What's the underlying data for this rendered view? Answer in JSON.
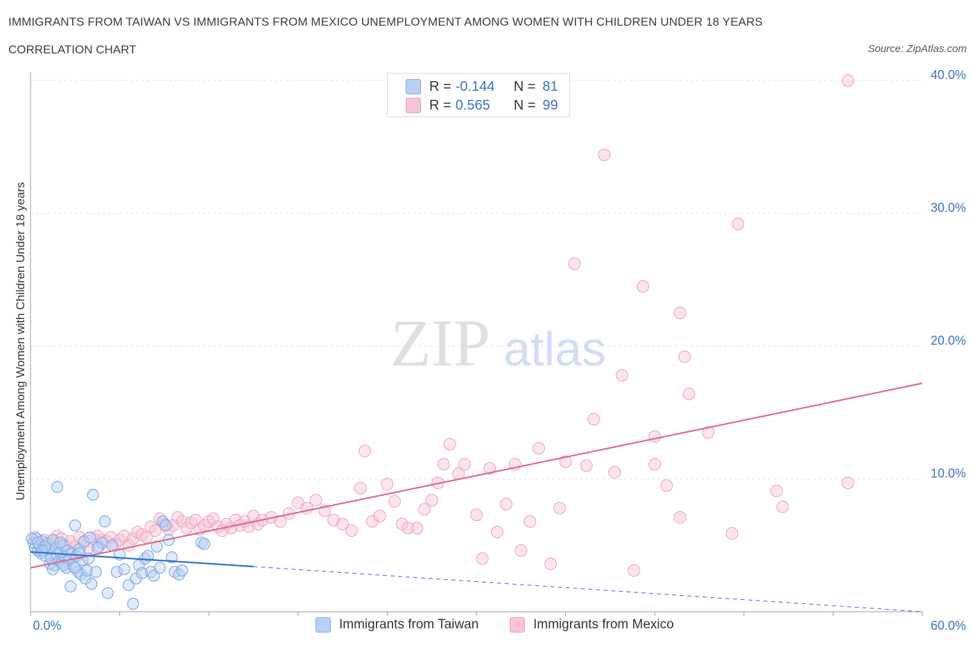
{
  "header": {
    "title": "IMMIGRANTS FROM TAIWAN VS IMMIGRANTS FROM MEXICO UNEMPLOYMENT AMONG WOMEN WITH CHILDREN UNDER 18 YEARS",
    "subtitle": "CORRELATION CHART",
    "source": "Source: ZipAtlas.com"
  },
  "watermark": {
    "zip": "ZIP",
    "atlas": "atlas"
  },
  "legend": {
    "taiwan": {
      "r_label": "R =",
      "r_value": "-0.144",
      "n_label": "N =",
      "n_value": "81"
    },
    "mexico": {
      "r_label": "R =",
      "r_value": "0.565",
      "n_label": "N =",
      "n_value": "99"
    }
  },
  "bottom_legend": {
    "taiwan": "Immigrants from Taiwan",
    "mexico": "Immigrants from Mexico"
  },
  "chart_data": {
    "type": "scatter",
    "title": "IMMIGRANTS FROM TAIWAN VS IMMIGRANTS FROM MEXICO UNEMPLOYMENT AMONG WOMEN WITH CHILDREN UNDER 18 YEARS",
    "subtitle": "CORRELATION CHART",
    "xlabel": "",
    "ylabel": "Unemployment Among Women with Children Under 18 years",
    "xlim": [
      0,
      60
    ],
    "ylim": [
      0,
      40
    ],
    "x_tick_labels": [
      "0.0%",
      "60.0%"
    ],
    "y_ticks": [
      10,
      20,
      30,
      40
    ],
    "y_tick_labels": [
      "10.0%",
      "20.0%",
      "30.0%",
      "40.0%"
    ],
    "grid": "horizontal dashed",
    "legend_position": "top-center",
    "colors": {
      "taiwan": "#7fa8e6",
      "taiwan_line": "#2d6fcc",
      "mexico": "#eca0b8",
      "mexico_line": "#e06890"
    },
    "series": [
      {
        "name": "Immigrants from Taiwan",
        "r": -0.144,
        "n": 81,
        "trend": {
          "solid": [
            [
              0,
              4.5
            ],
            [
              15,
              3.4
            ]
          ],
          "dashed": [
            [
              15,
              3.4
            ],
            [
              60,
              0
            ]
          ]
        },
        "points": [
          [
            0.2,
            5.2
          ],
          [
            0.3,
            4.8
          ],
          [
            0.4,
            5.5
          ],
          [
            0.5,
            4.6
          ],
          [
            0.6,
            5.0
          ],
          [
            0.7,
            4.4
          ],
          [
            0.8,
            5.3
          ],
          [
            0.9,
            4.9
          ],
          [
            1.0,
            4.2
          ],
          [
            1.1,
            5.1
          ],
          [
            1.2,
            4.7
          ],
          [
            1.3,
            3.6
          ],
          [
            1.4,
            4.0
          ],
          [
            1.5,
            5.4
          ],
          [
            1.6,
            3.5
          ],
          [
            1.7,
            4.8
          ],
          [
            1.8,
            4.3
          ],
          [
            1.9,
            3.8
          ],
          [
            2.0,
            4.5
          ],
          [
            2.1,
            3.7
          ],
          [
            2.2,
            5.0
          ],
          [
            2.3,
            4.1
          ],
          [
            2.4,
            3.3
          ],
          [
            2.5,
            4.6
          ],
          [
            2.6,
            3.9
          ],
          [
            2.7,
            1.9
          ],
          [
            2.8,
            4.4
          ],
          [
            2.9,
            3.4
          ],
          [
            3.0,
            6.5
          ],
          [
            3.1,
            4.2
          ],
          [
            3.2,
            3.0
          ],
          [
            3.3,
            4.7
          ],
          [
            3.4,
            2.8
          ],
          [
            3.5,
            3.9
          ],
          [
            3.6,
            5.3
          ],
          [
            3.7,
            2.5
          ],
          [
            3.8,
            3.1
          ],
          [
            3.9,
            4.0
          ],
          [
            4.0,
            5.6
          ],
          [
            4.1,
            2.1
          ],
          [
            4.2,
            8.8
          ],
          [
            4.4,
            3.0
          ],
          [
            4.6,
            4.9
          ],
          [
            4.8,
            5.2
          ],
          [
            5.0,
            6.8
          ],
          [
            5.2,
            1.4
          ],
          [
            5.5,
            5.0
          ],
          [
            5.8,
            3.0
          ],
          [
            6.0,
            4.3
          ],
          [
            6.3,
            3.2
          ],
          [
            6.6,
            2.0
          ],
          [
            6.9,
            0.6
          ],
          [
            7.1,
            2.5
          ],
          [
            7.3,
            3.5
          ],
          [
            7.5,
            2.9
          ],
          [
            7.7,
            4.0
          ],
          [
            7.9,
            4.2
          ],
          [
            8.1,
            3.0
          ],
          [
            8.3,
            2.7
          ],
          [
            8.5,
            4.9
          ],
          [
            8.7,
            3.3
          ],
          [
            8.9,
            6.8
          ],
          [
            9.1,
            6.5
          ],
          [
            9.3,
            5.4
          ],
          [
            9.5,
            4.1
          ],
          [
            9.7,
            3.0
          ],
          [
            10.0,
            2.8
          ],
          [
            10.2,
            3.1
          ],
          [
            11.5,
            5.2
          ],
          [
            11.7,
            5.1
          ],
          [
            1.8,
            9.4
          ],
          [
            0.1,
            5.5
          ],
          [
            0.5,
            5.2
          ],
          [
            1.0,
            4.9
          ],
          [
            2.0,
            5.2
          ],
          [
            1.5,
            3.2
          ],
          [
            3.0,
            3.3
          ],
          [
            3.3,
            4.4
          ],
          [
            4.5,
            4.8
          ],
          [
            0.8,
            4.6
          ],
          [
            2.2,
            3.5
          ]
        ]
      },
      {
        "name": "Immigrants from Mexico",
        "r": 0.565,
        "n": 99,
        "trend": {
          "solid": [
            [
              0,
              3.3
            ],
            [
              60,
              17.2
            ]
          ]
        },
        "points": [
          [
            0.3,
            5.6
          ],
          [
            0.6,
            5.0
          ],
          [
            0.9,
            5.4
          ],
          [
            1.2,
            4.8
          ],
          [
            1.5,
            5.2
          ],
          [
            1.8,
            5.7
          ],
          [
            2.1,
            5.5
          ],
          [
            2.4,
            5.0
          ],
          [
            2.7,
            5.3
          ],
          [
            3.0,
            4.9
          ],
          [
            3.3,
            5.6
          ],
          [
            3.6,
            5.2
          ],
          [
            3.9,
            4.8
          ],
          [
            4.2,
            5.5
          ],
          [
            4.5,
            5.7
          ],
          [
            4.8,
            5.4
          ],
          [
            5.1,
            5.3
          ],
          [
            5.4,
            5.6
          ],
          [
            5.7,
            5.1
          ],
          [
            6.0,
            5.4
          ],
          [
            6.3,
            5.7
          ],
          [
            6.6,
            5.0
          ],
          [
            6.9,
            5.5
          ],
          [
            7.2,
            6.0
          ],
          [
            7.5,
            5.8
          ],
          [
            7.8,
            5.6
          ],
          [
            8.1,
            6.4
          ],
          [
            8.4,
            6.1
          ],
          [
            8.7,
            7.0
          ],
          [
            9.0,
            6.6
          ],
          [
            9.3,
            6.2
          ],
          [
            9.6,
            6.5
          ],
          [
            9.9,
            7.1
          ],
          [
            10.2,
            6.8
          ],
          [
            10.5,
            6.3
          ],
          [
            10.8,
            6.7
          ],
          [
            11.1,
            6.9
          ],
          [
            11.4,
            6.2
          ],
          [
            11.7,
            6.5
          ],
          [
            12.0,
            6.8
          ],
          [
            12.3,
            7.0
          ],
          [
            12.6,
            6.4
          ],
          [
            12.9,
            6.1
          ],
          [
            13.2,
            6.6
          ],
          [
            13.5,
            6.3
          ],
          [
            13.8,
            6.9
          ],
          [
            14.1,
            6.5
          ],
          [
            14.4,
            6.8
          ],
          [
            14.7,
            6.4
          ],
          [
            15.0,
            7.2
          ],
          [
            15.3,
            6.6
          ],
          [
            15.6,
            6.9
          ],
          [
            16.2,
            7.1
          ],
          [
            16.8,
            6.8
          ],
          [
            17.4,
            7.4
          ],
          [
            18.0,
            8.2
          ],
          [
            18.6,
            7.8
          ],
          [
            19.2,
            8.4
          ],
          [
            19.8,
            7.6
          ],
          [
            20.4,
            6.9
          ],
          [
            21.0,
            6.6
          ],
          [
            21.6,
            6.1
          ],
          [
            22.2,
            9.3
          ],
          [
            22.5,
            12.1
          ],
          [
            23.0,
            6.8
          ],
          [
            23.5,
            7.2
          ],
          [
            24.0,
            9.6
          ],
          [
            24.5,
            8.3
          ],
          [
            25.0,
            6.6
          ],
          [
            25.4,
            6.3
          ],
          [
            26.0,
            6.3
          ],
          [
            26.5,
            7.7
          ],
          [
            27.0,
            8.4
          ],
          [
            27.4,
            9.7
          ],
          [
            27.8,
            11.1
          ],
          [
            28.2,
            12.6
          ],
          [
            28.8,
            10.4
          ],
          [
            29.2,
            11.1
          ],
          [
            30.0,
            7.3
          ],
          [
            30.4,
            4.0
          ],
          [
            30.9,
            10.8
          ],
          [
            31.4,
            6.0
          ],
          [
            32.0,
            8.1
          ],
          [
            32.6,
            11.1
          ],
          [
            33.0,
            4.6
          ],
          [
            33.6,
            6.8
          ],
          [
            34.2,
            12.3
          ],
          [
            35.0,
            3.6
          ],
          [
            35.6,
            7.8
          ],
          [
            36.0,
            11.3
          ],
          [
            36.6,
            26.2
          ],
          [
            37.4,
            11.0
          ],
          [
            37.9,
            14.5
          ],
          [
            38.6,
            34.4
          ],
          [
            39.3,
            10.5
          ],
          [
            39.8,
            17.8
          ],
          [
            40.6,
            3.1
          ],
          [
            41.2,
            24.5
          ],
          [
            42.0,
            11.1
          ]
        ]
      }
    ]
  }
}
